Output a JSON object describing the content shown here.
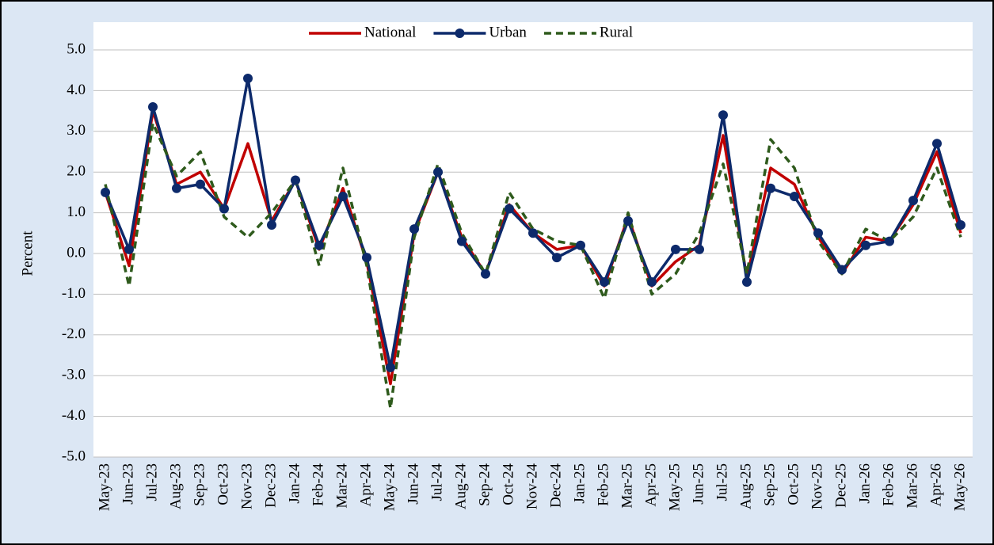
{
  "chart_data": {
    "type": "line",
    "y_label": "Percent",
    "categories": [
      "May-23",
      "Jun-23",
      "Jul-23",
      "Aug-23",
      "Sep-23",
      "Oct-23",
      "Nov-23",
      "Dec-23",
      "Jan-24",
      "Feb-24",
      "Mar-24",
      "Apr-24",
      "May-24",
      "Jun-24",
      "Jul-24",
      "Aug-24",
      "Sep-24",
      "Oct-24",
      "Nov-24",
      "Dec-24",
      "Jan-25",
      "Feb-25",
      "Mar-25",
      "Apr-25",
      "May-25",
      "Jun-25",
      "Jul-25",
      "Aug-25",
      "Sep-25",
      "Oct-25",
      "Nov-25",
      "Dec-25",
      "Jan-26",
      "Feb-26",
      "Mar-26",
      "Apr-26",
      "May-26"
    ],
    "series": [
      {
        "name": "National",
        "color": "#c00000",
        "dashed": false,
        "marker": false,
        "values": [
          1.5,
          -0.3,
          3.5,
          1.7,
          2.0,
          1.1,
          2.7,
          0.8,
          1.8,
          0.1,
          1.6,
          -0.2,
          -3.2,
          0.5,
          2.0,
          0.4,
          -0.5,
          1.2,
          0.5,
          0.1,
          0.2,
          -0.8,
          0.9,
          -0.8,
          -0.2,
          0.2,
          2.9,
          -0.6,
          2.1,
          1.7,
          0.4,
          -0.5,
          0.4,
          0.3,
          1.2,
          2.5,
          0.5
        ]
      },
      {
        "name": "Urban",
        "color": "#0d2a6b",
        "dashed": false,
        "marker": true,
        "values": [
          1.5,
          0.1,
          3.6,
          1.6,
          1.7,
          1.1,
          4.3,
          0.7,
          1.8,
          0.2,
          1.4,
          -0.1,
          -2.8,
          0.6,
          2.0,
          0.3,
          -0.5,
          1.1,
          0.5,
          -0.1,
          0.2,
          -0.7,
          0.8,
          -0.7,
          0.1,
          0.1,
          3.4,
          -0.7,
          1.6,
          1.4,
          0.5,
          -0.4,
          0.2,
          0.3,
          1.3,
          2.7,
          0.7
        ]
      },
      {
        "name": "Rural",
        "color": "#2e5a1c",
        "dashed": true,
        "marker": false,
        "values": [
          1.7,
          -0.8,
          3.2,
          1.9,
          2.5,
          0.9,
          0.4,
          1.0,
          1.8,
          -0.3,
          2.1,
          -0.3,
          -3.8,
          0.4,
          2.2,
          0.5,
          -0.5,
          1.5,
          0.6,
          0.3,
          0.2,
          -1.1,
          1.0,
          -1.0,
          -0.5,
          0.5,
          2.2,
          -0.5,
          2.8,
          2.1,
          0.3,
          -0.5,
          0.6,
          0.3,
          0.9,
          2.1,
          0.4
        ]
      }
    ],
    "ylim": [
      -5,
      5
    ],
    "yticks": [
      {
        "value": -5,
        "label": "-5.0"
      },
      {
        "value": -4,
        "label": "-4.0"
      },
      {
        "value": -3,
        "label": "-3.0"
      },
      {
        "value": -2,
        "label": "-2.0"
      },
      {
        "value": -1,
        "label": "-1.0"
      },
      {
        "value": 0,
        "label": "0.0"
      },
      {
        "value": 1,
        "label": "1.0"
      },
      {
        "value": 2,
        "label": "2.0"
      },
      {
        "value": 3,
        "label": "3.0"
      },
      {
        "value": 4,
        "label": "4.0"
      },
      {
        "value": 5,
        "label": "5.0"
      }
    ],
    "grid": true,
    "legend": "top"
  }
}
